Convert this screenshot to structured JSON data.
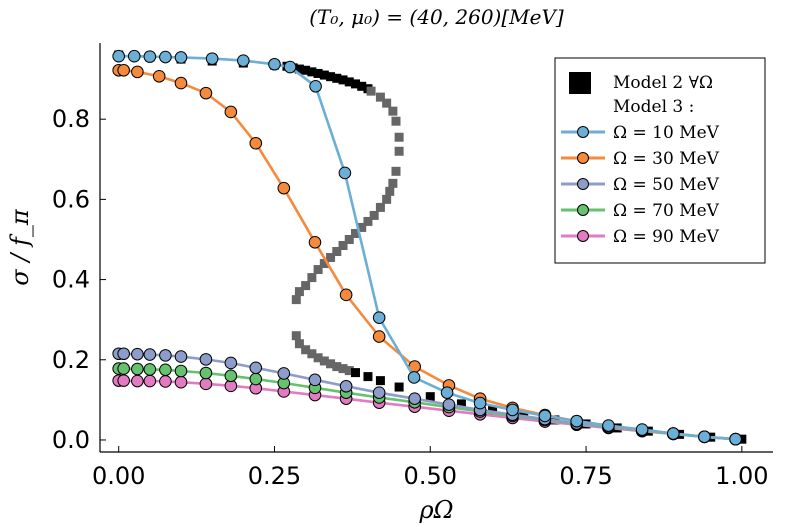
{
  "chart_data": {
    "type": "scatter",
    "title": "(T₀, μ₀) = (40, 260)[MeV]",
    "xlabel": "ρΩ",
    "ylabel": "σ / f_π",
    "xlim": [
      -0.03,
      1.05
    ],
    "ylim": [
      -0.03,
      0.99
    ],
    "x_ticks": [
      "0.00",
      "0.25",
      "0.50",
      "0.75",
      "1.00"
    ],
    "x_tick_values": [
      0.0,
      0.25,
      0.5,
      0.75,
      1.0
    ],
    "y_ticks": [
      "0.0",
      "0.2",
      "0.4",
      "0.6",
      "0.8"
    ],
    "y_tick_values": [
      0.0,
      0.2,
      0.4,
      0.6,
      0.8
    ],
    "grid": false,
    "legend_position": "top-right",
    "legend": {
      "model2": "Model 2 ∀Ω",
      "model3_header": "Model 3 :"
    },
    "model2": {
      "name": "Model 2 ∀Ω",
      "marker": "square",
      "color": "#000000",
      "upper_branch": {
        "x": [
          0.0,
          0.05,
          0.1,
          0.15,
          0.2,
          0.25,
          0.27,
          0.28,
          0.29,
          0.3,
          0.31,
          0.32,
          0.33,
          0.34,
          0.35,
          0.36,
          0.37,
          0.38,
          0.39,
          0.4
        ],
        "y": [
          0.96,
          0.955,
          0.95,
          0.945,
          0.94,
          0.935,
          0.932,
          0.928,
          0.925,
          0.922,
          0.918,
          0.914,
          0.91,
          0.906,
          0.902,
          0.898,
          0.893,
          0.888,
          0.882,
          0.876
        ]
      },
      "unstable_branch": {
        "x": [
          0.405,
          0.42,
          0.43,
          0.44,
          0.445,
          0.45,
          0.45,
          0.445,
          0.44,
          0.435,
          0.43,
          0.42,
          0.41,
          0.4,
          0.39,
          0.38,
          0.37,
          0.36,
          0.35,
          0.34,
          0.33,
          0.32,
          0.31,
          0.3,
          0.29,
          0.285,
          0.285,
          0.29,
          0.3,
          0.31,
          0.32,
          0.33,
          0.34,
          0.35,
          0.36,
          0.37
        ],
        "y": [
          0.87,
          0.855,
          0.84,
          0.82,
          0.795,
          0.755,
          0.72,
          0.67,
          0.64,
          0.62,
          0.6,
          0.58,
          0.56,
          0.545,
          0.53,
          0.515,
          0.5,
          0.485,
          0.47,
          0.455,
          0.44,
          0.425,
          0.405,
          0.385,
          0.37,
          0.35,
          0.26,
          0.24,
          0.225,
          0.215,
          0.205,
          0.197,
          0.19,
          0.183,
          0.178,
          0.173
        ]
      },
      "lower_branch": {
        "x": [
          0.38,
          0.4,
          0.42,
          0.45,
          0.5,
          0.55,
          0.6,
          0.65,
          0.7,
          0.75,
          0.8,
          0.85,
          0.9,
          0.95,
          1.0
        ],
        "y": [
          0.168,
          0.158,
          0.148,
          0.132,
          0.108,
          0.09,
          0.075,
          0.062,
          0.05,
          0.04,
          0.03,
          0.022,
          0.014,
          0.007,
          0.002
        ]
      }
    },
    "series": [
      {
        "name": "Ω = 10 MeV",
        "color": "#6baed6",
        "x": [
          0.0,
          0.025,
          0.05,
          0.075,
          0.1,
          0.15,
          0.2,
          0.25,
          0.275,
          0.316,
          0.363,
          0.418,
          0.474,
          0.527,
          0.58,
          0.632,
          0.684,
          0.735,
          0.786,
          0.84,
          0.89,
          0.94,
          0.99
        ],
        "values": [
          0.957,
          0.957,
          0.956,
          0.955,
          0.954,
          0.951,
          0.946,
          0.937,
          0.93,
          0.882,
          0.666,
          0.305,
          0.156,
          0.118,
          0.092,
          0.075,
          0.06,
          0.047,
          0.036,
          0.026,
          0.016,
          0.008,
          0.002
        ]
      },
      {
        "name": "Ω = 30 MeV",
        "color": "#f58a3c",
        "x": [
          0.0,
          0.008,
          0.03,
          0.065,
          0.1,
          0.14,
          0.18,
          0.22,
          0.265,
          0.315,
          0.365,
          0.418,
          0.475,
          0.53,
          0.58,
          0.632,
          0.684,
          0.735,
          0.786,
          0.84,
          0.89,
          0.94,
          0.99
        ],
        "values": [
          0.922,
          0.922,
          0.918,
          0.907,
          0.89,
          0.865,
          0.818,
          0.74,
          0.628,
          0.493,
          0.362,
          0.258,
          0.183,
          0.136,
          0.103,
          0.08,
          0.062,
          0.047,
          0.035,
          0.025,
          0.016,
          0.008,
          0.002
        ]
      },
      {
        "name": "Ω = 50 MeV",
        "color": "#8d9dca",
        "x": [
          0.0,
          0.008,
          0.03,
          0.05,
          0.075,
          0.1,
          0.14,
          0.18,
          0.22,
          0.265,
          0.315,
          0.365,
          0.418,
          0.475,
          0.53,
          0.58,
          0.632,
          0.684,
          0.735,
          0.786,
          0.84,
          0.89,
          0.94,
          0.99
        ],
        "values": [
          0.215,
          0.215,
          0.214,
          0.213,
          0.211,
          0.208,
          0.201,
          0.192,
          0.18,
          0.166,
          0.15,
          0.134,
          0.118,
          0.103,
          0.088,
          0.075,
          0.063,
          0.052,
          0.041,
          0.032,
          0.024,
          0.016,
          0.008,
          0.002
        ]
      },
      {
        "name": "Ω = 70 MeV",
        "color": "#66c26e",
        "x": [
          0.0,
          0.008,
          0.03,
          0.05,
          0.075,
          0.1,
          0.14,
          0.18,
          0.22,
          0.265,
          0.315,
          0.365,
          0.418,
          0.475,
          0.53,
          0.58,
          0.632,
          0.684,
          0.735,
          0.786,
          0.84,
          0.89,
          0.94,
          0.99
        ],
        "values": [
          0.178,
          0.178,
          0.177,
          0.176,
          0.175,
          0.172,
          0.167,
          0.16,
          0.152,
          0.142,
          0.13,
          0.118,
          0.106,
          0.094,
          0.082,
          0.071,
          0.06,
          0.05,
          0.04,
          0.031,
          0.023,
          0.015,
          0.008,
          0.002
        ]
      },
      {
        "name": "Ω = 90 MeV",
        "color": "#e37bc2",
        "x": [
          0.0,
          0.008,
          0.03,
          0.05,
          0.075,
          0.1,
          0.14,
          0.18,
          0.22,
          0.265,
          0.315,
          0.365,
          0.418,
          0.475,
          0.53,
          0.58,
          0.632,
          0.684,
          0.735,
          0.786,
          0.84,
          0.89,
          0.94,
          0.99
        ],
        "values": [
          0.148,
          0.148,
          0.147,
          0.147,
          0.146,
          0.144,
          0.14,
          0.135,
          0.129,
          0.121,
          0.112,
          0.103,
          0.093,
          0.083,
          0.073,
          0.064,
          0.055,
          0.046,
          0.038,
          0.03,
          0.022,
          0.015,
          0.008,
          0.002
        ]
      }
    ]
  }
}
